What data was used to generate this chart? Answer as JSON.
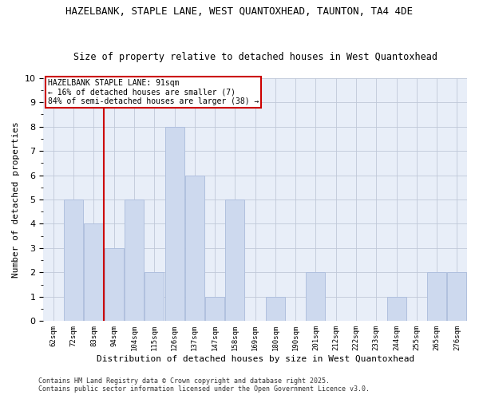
{
  "title": "HAZELBANK, STAPLE LANE, WEST QUANTOXHEAD, TAUNTON, TA4 4DE",
  "subtitle": "Size of property relative to detached houses in West Quantoxhead",
  "xlabel": "Distribution of detached houses by size in West Quantoxhead",
  "ylabel": "Number of detached properties",
  "categories": [
    "62sqm",
    "72sqm",
    "83sqm",
    "94sqm",
    "104sqm",
    "115sqm",
    "126sqm",
    "137sqm",
    "147sqm",
    "158sqm",
    "169sqm",
    "180sqm",
    "190sqm",
    "201sqm",
    "212sqm",
    "222sqm",
    "233sqm",
    "244sqm",
    "255sqm",
    "265sqm",
    "276sqm"
  ],
  "values": [
    0,
    5,
    4,
    3,
    5,
    2,
    8,
    6,
    1,
    5,
    0,
    1,
    0,
    2,
    0,
    0,
    0,
    1,
    0,
    2,
    2
  ],
  "bar_color": "#cdd9ee",
  "bar_edge_color": "#b0c0de",
  "vline_x_index": 2.5,
  "vline_color": "#cc0000",
  "annotation_text": "HAZELBANK STAPLE LANE: 91sqm\n← 16% of detached houses are smaller (7)\n84% of semi-detached houses are larger (38) →",
  "annotation_box_color": "#ffffff",
  "annotation_box_edge": "#cc0000",
  "ylim": [
    0,
    10
  ],
  "footnote": "Contains HM Land Registry data © Crown copyright and database right 2025.\nContains public sector information licensed under the Open Government Licence v3.0.",
  "bg_color": "#ffffff",
  "plot_bg_color": "#e8eef8"
}
